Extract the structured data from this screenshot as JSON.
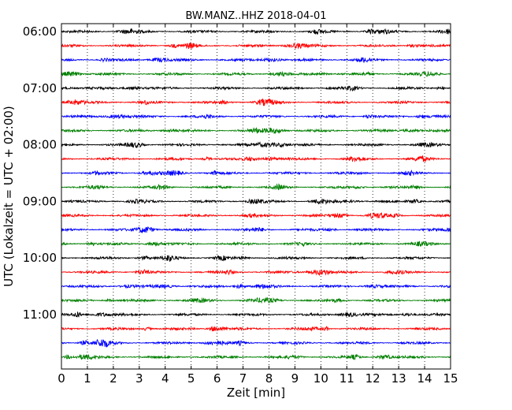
{
  "chart_data": {
    "type": "line",
    "title": "BW.MANZ..HHZ 2018-04-01",
    "xlabel": "Zeit  [min]",
    "ylabel": "UTC (Lokalzeit = UTC + 02:00)",
    "xlim": [
      0,
      15
    ],
    "x_ticks": [
      "0",
      "1",
      "2",
      "3",
      "4",
      "5",
      "6",
      "7",
      "8",
      "9",
      "10",
      "11",
      "12",
      "13",
      "14",
      "15"
    ],
    "y_ticks": [
      "06:00",
      "07:00",
      "08:00",
      "09:00",
      "10:00",
      "11:00"
    ],
    "grid": "vertical dotted",
    "traces_per_hour": 4,
    "minutes_per_trace": 15,
    "colors": [
      "#000000",
      "#ff0000",
      "#0000ff",
      "#008000"
    ],
    "series": [
      {
        "start": "06:00"
      },
      {
        "start": "06:15"
      },
      {
        "start": "06:30"
      },
      {
        "start": "06:45"
      },
      {
        "start": "07:00"
      },
      {
        "start": "07:15"
      },
      {
        "start": "07:30"
      },
      {
        "start": "07:45"
      },
      {
        "start": "08:00"
      },
      {
        "start": "08:15"
      },
      {
        "start": "08:30"
      },
      {
        "start": "08:45"
      },
      {
        "start": "09:00"
      },
      {
        "start": "09:15"
      },
      {
        "start": "09:30"
      },
      {
        "start": "09:45"
      },
      {
        "start": "10:00"
      },
      {
        "start": "10:15"
      },
      {
        "start": "10:30"
      },
      {
        "start": "10:45"
      },
      {
        "start": "11:00"
      },
      {
        "start": "11:15"
      },
      {
        "start": "11:30"
      },
      {
        "start": "11:45"
      }
    ]
  }
}
